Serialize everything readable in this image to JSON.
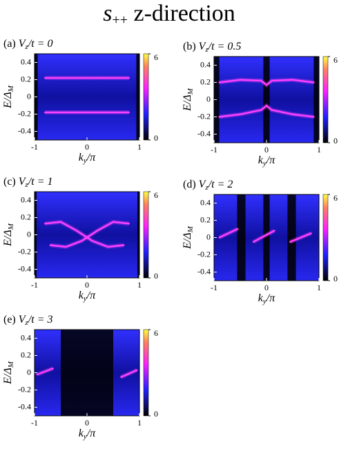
{
  "title": {
    "main": "s",
    "sub": "++",
    "rest": " z-direction"
  },
  "chart_data": [
    {
      "type": "heatmap",
      "title": {
        "tag": "(a)",
        "var": "V",
        "sub": "z",
        "rest": "/t = 0"
      },
      "xlabel": {
        "var": "k",
        "sub": "y",
        "rest": "/π"
      },
      "ylabel": {
        "main": "E/Δ",
        "sub": "M"
      },
      "xlim": [
        -1,
        1
      ],
      "ylim": [
        -0.5,
        0.5
      ],
      "xticks": [
        -1,
        0,
        1
      ],
      "yticks": [
        0.4,
        0.2,
        0,
        -0.2,
        -0.4
      ],
      "colorbar": {
        "lim": [
          0,
          6
        ],
        "ticks": [
          6,
          0
        ]
      },
      "series": [
        {
          "color": "#ff40ff",
          "x": [
            -0.8,
            0.8
          ],
          "values": [
            0.22,
            0.22
          ]
        },
        {
          "color": "#ff40ff",
          "x": [
            -0.8,
            0.8
          ],
          "values": [
            -0.18,
            -0.18
          ]
        }
      ]
    },
    {
      "type": "heatmap",
      "title": {
        "tag": "(b)",
        "var": "V",
        "sub": "z",
        "rest": "/t = 0.5"
      },
      "xlabel": {
        "var": "k",
        "sub": "y",
        "rest": "/π"
      },
      "ylabel": {
        "main": "E/Δ",
        "sub": "M"
      },
      "xlim": [
        -1,
        1
      ],
      "ylim": [
        -0.5,
        0.5
      ],
      "xticks": [
        -1,
        0,
        1
      ],
      "yticks": [
        0.4,
        0.2,
        0,
        -0.2,
        -0.4
      ],
      "colorbar": {
        "lim": [
          0,
          6
        ],
        "ticks": [
          6,
          0
        ]
      },
      "series": [
        {
          "color": "#ff40ff",
          "x": [
            -0.9,
            -0.5,
            -0.1,
            0,
            0.1,
            0.5,
            0.9
          ],
          "values": [
            0.2,
            0.23,
            0.22,
            0.17,
            0.22,
            0.23,
            0.2
          ]
        },
        {
          "color": "#ff40ff",
          "x": [
            -0.9,
            -0.5,
            -0.1,
            0,
            0.1,
            0.5,
            0.9
          ],
          "values": [
            -0.2,
            -0.17,
            -0.12,
            -0.07,
            -0.12,
            -0.17,
            -0.2
          ]
        }
      ]
    },
    {
      "type": "heatmap",
      "title": {
        "tag": "(c)",
        "var": "V",
        "sub": "z",
        "rest": "/t = 1"
      },
      "xlabel": {
        "var": "k",
        "sub": "y",
        "rest": "/π"
      },
      "ylabel": {
        "main": "E/Δ",
        "sub": "M"
      },
      "xlim": [
        -1,
        1
      ],
      "ylim": [
        -0.5,
        0.5
      ],
      "xticks": [
        -1,
        0,
        1
      ],
      "yticks": [
        0.4,
        0.2,
        0,
        -0.2,
        -0.4
      ],
      "colorbar": {
        "lim": [
          0,
          6
        ],
        "ticks": [
          6,
          0
        ]
      },
      "series": [
        {
          "color": "#ff40ff",
          "x": [
            -0.8,
            -0.5,
            -0.2,
            0.1,
            0.4,
            0.7
          ],
          "values": [
            0.13,
            0.15,
            0.05,
            -0.07,
            -0.14,
            -0.12
          ]
        },
        {
          "color": "#ff40ff",
          "x": [
            -0.7,
            -0.4,
            -0.1,
            0.2,
            0.5,
            0.8
          ],
          "values": [
            -0.12,
            -0.14,
            -0.07,
            0.05,
            0.15,
            0.13
          ]
        }
      ]
    },
    {
      "type": "heatmap",
      "title": {
        "tag": "(d)",
        "var": "V",
        "sub": "z",
        "rest": "/t = 2"
      },
      "xlabel": {
        "var": "k",
        "sub": "y",
        "rest": "/π"
      },
      "ylabel": {
        "main": "E/Δ",
        "sub": "M"
      },
      "xlim": [
        -1,
        1
      ],
      "ylim": [
        -0.5,
        0.5
      ],
      "xticks": [
        -1,
        0,
        1
      ],
      "yticks": [
        0.4,
        0.2,
        0,
        -0.2,
        -0.4
      ],
      "colorbar": {
        "lim": [
          0,
          6
        ],
        "ticks": [
          6,
          0
        ]
      },
      "series": [
        {
          "color": "#ff40ff",
          "x": [
            -0.9,
            -0.55
          ],
          "values": [
            0.0,
            0.1
          ]
        },
        {
          "color": "#ff40ff",
          "x": [
            -0.25,
            0.15
          ],
          "values": [
            -0.05,
            0.08
          ]
        },
        {
          "color": "#ff40ff",
          "x": [
            0.45,
            0.85
          ],
          "values": [
            -0.05,
            0.05
          ]
        }
      ]
    },
    {
      "type": "heatmap",
      "title": {
        "tag": "(e)",
        "var": "V",
        "sub": "z",
        "rest": "/t = 3"
      },
      "xlabel": {
        "var": "k",
        "sub": "y",
        "rest": "/π"
      },
      "ylabel": {
        "main": "E/Δ",
        "sub": "M"
      },
      "xlim": [
        -1,
        1
      ],
      "ylim": [
        -0.5,
        0.5
      ],
      "xticks": [
        -1,
        0,
        1
      ],
      "yticks": [
        0.4,
        0.2,
        0,
        -0.2,
        -0.4
      ],
      "colorbar": {
        "lim": [
          0,
          6
        ],
        "ticks": [
          6,
          0
        ]
      },
      "series": [
        {
          "color": "#ff40ff",
          "x": [
            -0.95,
            -0.65
          ],
          "values": [
            -0.02,
            0.05
          ]
        },
        {
          "color": "#ff40ff",
          "x": [
            0.65,
            0.95
          ],
          "values": [
            -0.05,
            0.03
          ]
        }
      ]
    }
  ]
}
